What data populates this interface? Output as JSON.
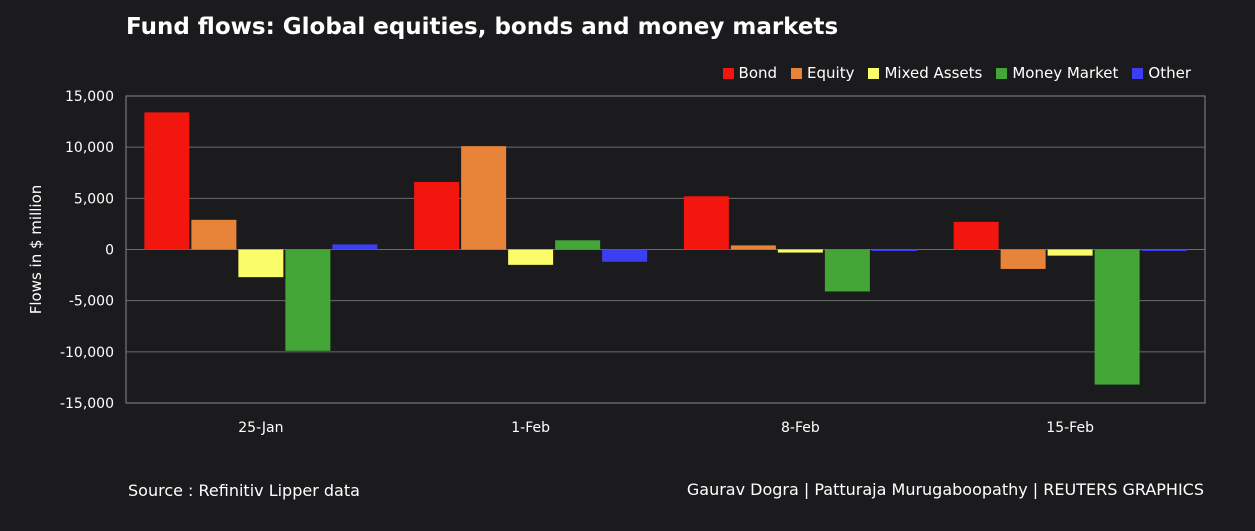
{
  "title": "Fund flows: Global equities, bonds and money markets",
  "source": "Source : Refinitiv Lipper data",
  "credit": "Gaurav Dogra | Patturaja Murugaboopathy | REUTERS GRAPHICS",
  "chart_data": {
    "type": "bar",
    "title": "Fund flows: Global equities, bonds and money markets",
    "xlabel": "",
    "ylabel": "Flows in $ million",
    "ylim": [
      -15000,
      15000
    ],
    "yticks": [
      15000,
      10000,
      5000,
      0,
      -5000,
      -10000,
      -15000
    ],
    "ytick_labels": [
      "15,000",
      "10,000",
      "5,000",
      "0",
      "-5,000",
      "-10,000",
      "-15,000"
    ],
    "grid": true,
    "legend_position": "top-right",
    "categories": [
      "25-Jan",
      "1-Feb",
      "8-Feb",
      "15-Feb"
    ],
    "series": [
      {
        "name": "Bond",
        "color": "#f2160f",
        "values": [
          13400,
          6600,
          5200,
          2700
        ]
      },
      {
        "name": "Equity",
        "color": "#e8833a",
        "values": [
          2900,
          10100,
          400,
          -1900
        ]
      },
      {
        "name": "Mixed Assets",
        "color": "#fbfc6a",
        "values": [
          -2700,
          -1500,
          -300,
          -600
        ]
      },
      {
        "name": "Money Market",
        "color": "#43a637",
        "values": [
          -9900,
          900,
          -4100,
          -13200
        ]
      },
      {
        "name": "Other",
        "color": "#3b3ef2",
        "values": [
          500,
          -1200,
          -100,
          -100
        ]
      }
    ]
  }
}
